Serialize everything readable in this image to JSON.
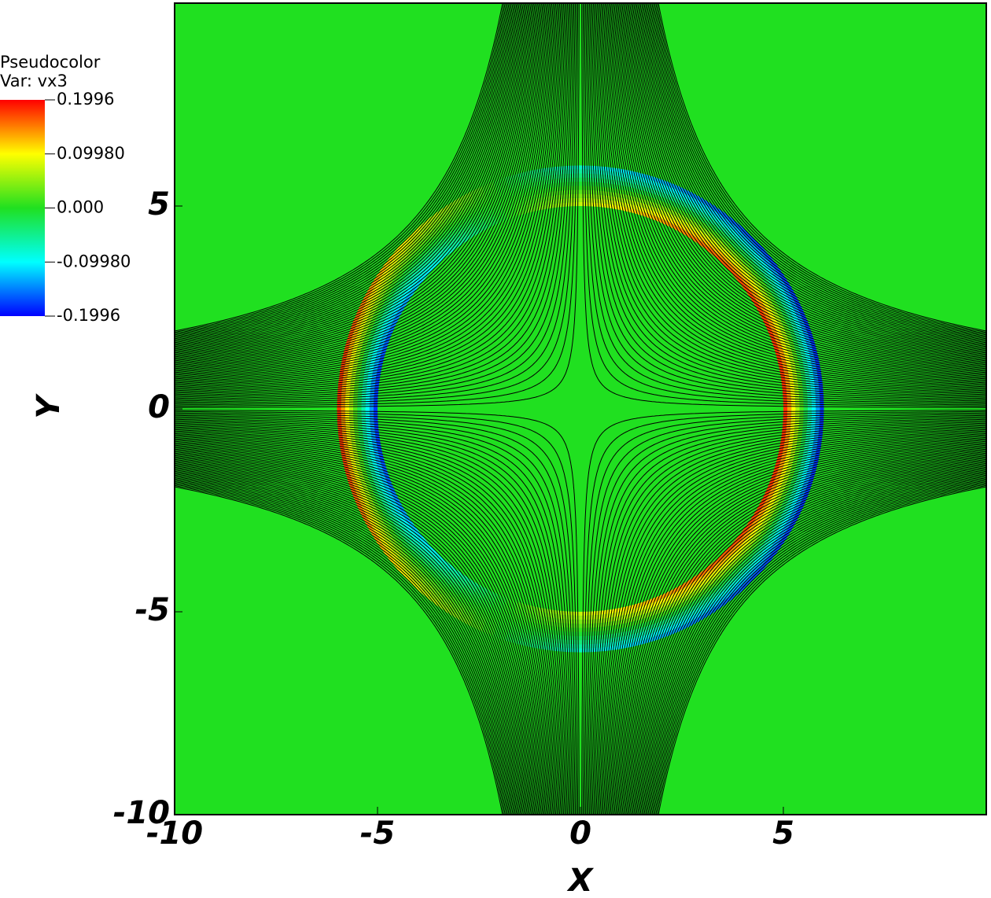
{
  "chart_data": {
    "type": "pseudocolor",
    "legend_title": "Pseudocolor",
    "legend_subtitle": "Var: vx3",
    "colormap": [
      "#0000ff",
      "#00ffff",
      "#20e020",
      "#ffff00",
      "#ff0000"
    ],
    "background_color": "#20e020",
    "colorbar_ticks": [
      -0.1996,
      {
        "value": -0.0998,
        "label": "-0.09980"
      },
      {
        "value": 0,
        "label": "0.000"
      },
      {
        "value": 0.0998,
        "label": "0.09980"
      },
      0.1996
    ],
    "xlabel": "X",
    "ylabel": "Y",
    "xlim": [
      -10,
      10
    ],
    "ylim": [
      -10,
      10
    ],
    "xticks": [
      -10,
      -5,
      0,
      5
    ],
    "yticks": [
      -10,
      -5,
      0,
      5
    ]
  }
}
